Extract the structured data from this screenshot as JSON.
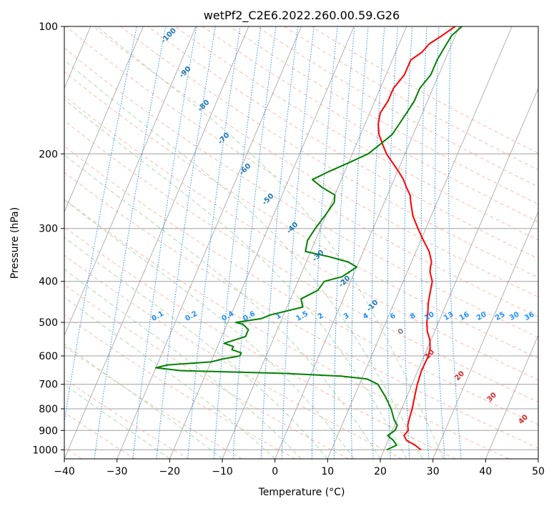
{
  "chart_data": {
    "type": "line",
    "title": "wetPf2_C2E6.2022.260.00.59.G26",
    "xlabel": "Temperature (°C)",
    "ylabel": "Pressure (hPa)",
    "xlim": [
      -40,
      50
    ],
    "ylim": [
      1050,
      100
    ],
    "y_scale": "log",
    "x_ticks": [
      -40,
      -30,
      -20,
      -10,
      0,
      10,
      20,
      30,
      40,
      50
    ],
    "y_ticks": [
      100,
      200,
      300,
      400,
      500,
      600,
      700,
      800,
      900,
      1000
    ],
    "grid": true,
    "colors": {
      "temperature": "#ff0000",
      "dewpoint": "#008000",
      "isotherm": "#a0a0a0",
      "dry_adiabat": "#ff8c69",
      "moist_adiabat": "#74c476",
      "mixing_ratio": "#1e90ff",
      "dry_adiabat_label": "#d62728",
      "moist_adiabat_label": "#1f77b4",
      "zero_label": "#808080"
    },
    "series": [
      {
        "key": "temperature",
        "p": [
          1000,
          975,
          950,
          925,
          900,
          875,
          850,
          800,
          750,
          700,
          650,
          600,
          575,
          550,
          525,
          500,
          475,
          450,
          425,
          400,
          380,
          370,
          360,
          340,
          320,
          300,
          280,
          260,
          250,
          240,
          230,
          220,
          210,
          200,
          190,
          180,
          170,
          160,
          150,
          140,
          130,
          120,
          115,
          110,
          105,
          100
        ],
        "t": [
          27,
          25.5,
          23.5,
          22.6,
          23,
          22.5,
          22.3,
          22,
          21.5,
          21,
          20.7,
          20.8,
          20.5,
          19.8,
          18.6,
          17.8,
          17.2,
          16.5,
          16,
          15.5,
          14.3,
          14,
          13.8,
          12.5,
          10.5,
          8.5,
          6.5,
          5,
          4.3,
          3,
          1.8,
          0.2,
          -1.6,
          -3.5,
          -5,
          -6.5,
          -7.5,
          -8,
          -7.5,
          -7.5,
          -6.5,
          -6.5,
          -5,
          -4.3,
          -2.5,
          -0.8
        ]
      },
      {
        "key": "dewpoint",
        "p": [
          1000,
          975,
          950,
          925,
          900,
          875,
          850,
          800,
          750,
          700,
          680,
          670,
          660,
          650,
          640,
          630,
          620,
          610,
          600,
          590,
          580,
          570,
          560,
          540,
          520,
          505,
          500,
          490,
          480,
          460,
          440,
          420,
          400,
          390,
          380,
          370,
          360,
          350,
          340,
          320,
          300,
          280,
          260,
          250,
          240,
          230,
          220,
          210,
          200,
          190,
          180,
          170,
          160,
          150,
          140,
          130,
          120,
          110,
          105,
          100
        ],
        "t": [
          20.5,
          22,
          21,
          19.5,
          20.5,
          20.5,
          19.5,
          18,
          16,
          13.5,
          11,
          6,
          -5,
          -25,
          -30,
          -28,
          -20,
          -18,
          -15,
          -15,
          -17,
          -17,
          -19,
          -15.5,
          -15.5,
          -17,
          -18.5,
          -14,
          -12.5,
          -7,
          -8,
          -5.5,
          -5,
          -2,
          -1,
          0,
          -2,
          -6,
          -11,
          -11.5,
          -11,
          -10.2,
          -9.5,
          -10,
          -13,
          -15.5,
          -13,
          -10,
          -7,
          -5.5,
          -4,
          -3.5,
          -3,
          -2.5,
          -2.5,
          -1.5,
          -1.5,
          -1,
          -0.7,
          0.5
        ]
      }
    ],
    "isotherm_annotations": [
      "-100",
      "-90",
      "-80",
      "-70",
      "-60",
      "-50",
      "-40",
      "-30",
      "-20",
      "-10"
    ],
    "mixing_ratio_annotations": [
      "0.1",
      "0.2",
      "0.4",
      "0.6",
      "1",
      "1.5",
      "2",
      "3",
      "4",
      "6",
      "8",
      "10",
      "13",
      "16",
      "20",
      "25",
      "30",
      "36"
    ],
    "dry_adiabat_annotations": [
      "0",
      "10",
      "20",
      "30",
      "40"
    ]
  }
}
